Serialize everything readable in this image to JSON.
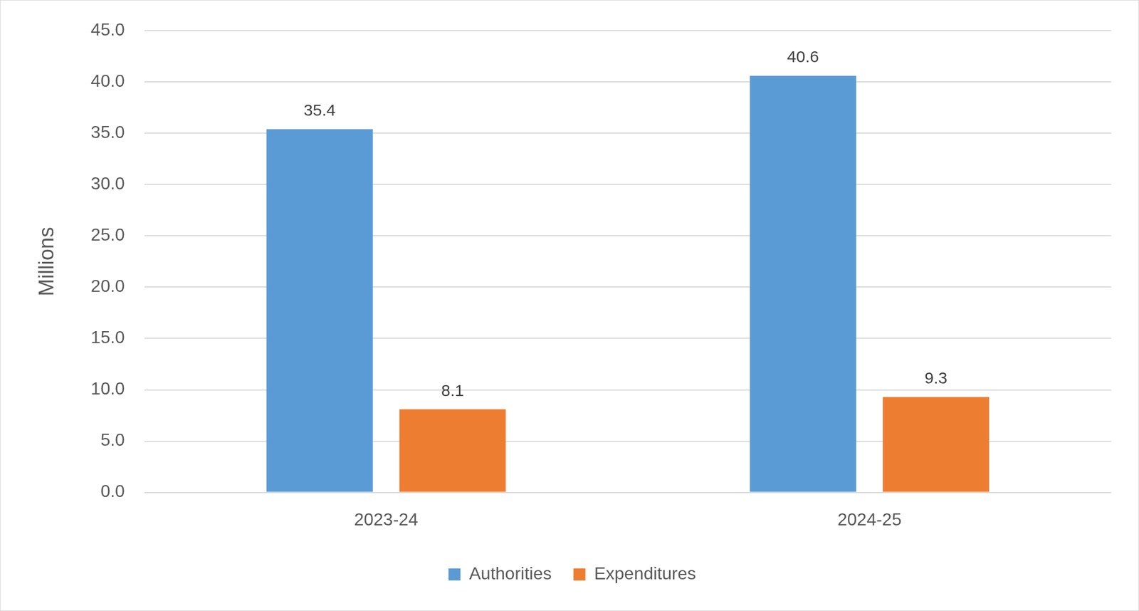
{
  "chart_data": {
    "type": "bar",
    "y_label": "Millions",
    "categories": [
      "2023-24",
      "2024-25"
    ],
    "series": [
      {
        "name": "Authorities",
        "color": "#5b9bd5",
        "values": [
          35.4,
          40.6
        ]
      },
      {
        "name": "Expenditures",
        "color": "#ed7d31",
        "values": [
          8.1,
          9.3
        ]
      }
    ],
    "ylim": [
      0,
      45
    ],
    "yticks": [
      {
        "value": 0,
        "label": "0.0"
      },
      {
        "value": 5,
        "label": "5.0"
      },
      {
        "value": 10,
        "label": "10.0"
      },
      {
        "value": 15,
        "label": "15.0"
      },
      {
        "value": 20,
        "label": "20.0"
      },
      {
        "value": 25,
        "label": "25.0"
      },
      {
        "value": 30,
        "label": "30.0"
      },
      {
        "value": 35,
        "label": "35.0"
      },
      {
        "value": 40,
        "label": "40.0"
      },
      {
        "value": 45,
        "label": "45.0"
      }
    ],
    "grid": true,
    "legend": "bottom",
    "data_labels": true
  }
}
